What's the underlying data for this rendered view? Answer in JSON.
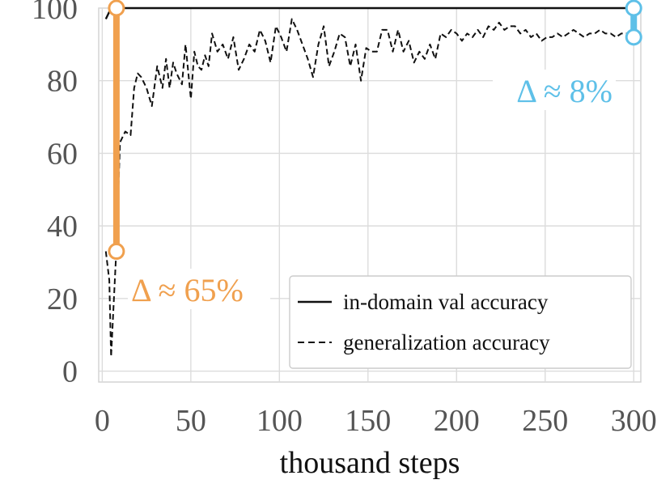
{
  "chart_data": {
    "type": "line",
    "xlabel": "thousand steps",
    "ylabel": "",
    "xlim": [
      -2,
      304
    ],
    "ylim": [
      -3,
      100
    ],
    "xticks": [
      0,
      50,
      100,
      150,
      200,
      250,
      300
    ],
    "yticks": [
      0,
      20,
      40,
      60,
      80,
      100
    ],
    "grid": true,
    "legend_position": "bottom-right",
    "series": [
      {
        "name": "in-domain val accuracy",
        "style": "solid",
        "color": "#111111",
        "x": [
          2,
          5,
          300
        ],
        "y": [
          97,
          100,
          100
        ]
      },
      {
        "name": "generalization accuracy",
        "style": "dashed",
        "color": "#111111",
        "x": [
          2,
          4,
          5,
          6,
          8,
          10,
          13,
          16,
          18,
          20,
          22,
          25,
          28,
          31,
          34,
          36,
          38,
          40,
          42,
          45,
          47,
          50,
          52,
          54,
          56,
          58,
          60,
          62,
          65,
          68,
          71,
          74,
          77,
          80,
          83,
          86,
          89,
          92,
          95,
          98,
          101,
          104,
          107,
          110,
          113,
          116,
          119,
          122,
          125,
          128,
          131,
          134,
          137,
          140,
          143,
          146,
          149,
          152,
          155,
          158,
          161,
          164,
          167,
          170,
          173,
          176,
          179,
          182,
          185,
          188,
          191,
          194,
          197,
          200,
          203,
          206,
          209,
          212,
          215,
          218,
          221,
          224,
          227,
          230,
          233,
          236,
          239,
          242,
          245,
          248,
          251,
          254,
          257,
          260,
          263,
          266,
          269,
          272,
          275,
          278,
          281,
          284,
          287,
          290,
          293,
          296,
          299
        ],
        "y": [
          33,
          25,
          4,
          14,
          34,
          63,
          66,
          65,
          78,
          82,
          81,
          78,
          73,
          84,
          78,
          86,
          78,
          85,
          82,
          79,
          90,
          75,
          88,
          84,
          83,
          87,
          84,
          93,
          88,
          90,
          86,
          92,
          83,
          86,
          90,
          88,
          94,
          91,
          85,
          95,
          92,
          88,
          97,
          94,
          90,
          86,
          81,
          90,
          95,
          84,
          88,
          93,
          92,
          84,
          90,
          80,
          89,
          88,
          88,
          94,
          94,
          88,
          94,
          88,
          91,
          85,
          88,
          86,
          90,
          86,
          93,
          92,
          94,
          93,
          91,
          93,
          92,
          94,
          92,
          95,
          94,
          96,
          94,
          95,
          95,
          93,
          94,
          92,
          93,
          91,
          92,
          92,
          93,
          92,
          93,
          94,
          93,
          92,
          93,
          93,
          94,
          93,
          93,
          92,
          93,
          93,
          93
        ]
      }
    ],
    "annotations": [
      {
        "text": "Δ ≈ 65%",
        "color": "#f0a04e",
        "x": 8,
        "y_top": 100,
        "y_bottom": 33
      },
      {
        "text": "Δ ≈ 8%",
        "color": "#5ec0e8",
        "x": 300,
        "y_top": 100,
        "y_bottom": 92
      }
    ]
  }
}
